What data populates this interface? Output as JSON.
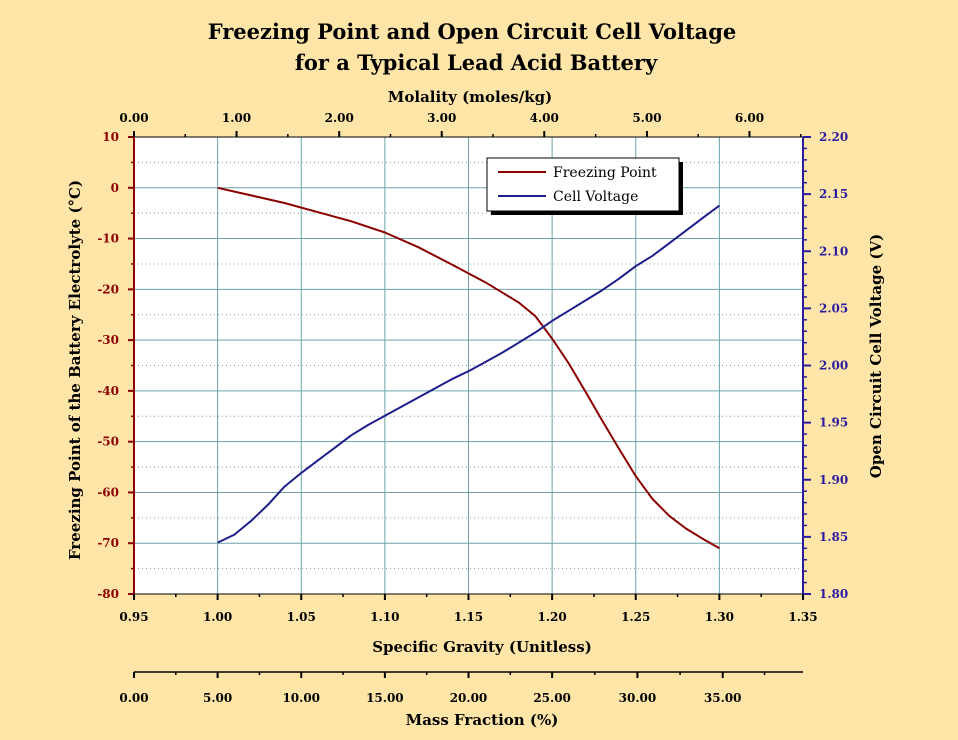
{
  "colors": {
    "background": "#FFE6A8",
    "plot_background": "#FFFFFF",
    "grid": "#6FA3A8",
    "freezing": "#8B0000",
    "voltage": "#1E1E8C",
    "left_axis": "#8B0000",
    "right_axis": "#2A1CA0",
    "text": "#000000"
  },
  "chart_data": {
    "type": "line",
    "title": [
      "Freezing Point and Open Circuit Cell Voltage",
      "for a Typical Lead Acid Battery"
    ],
    "xlabel": "Specific Gravity (Unitless)",
    "xlim": [
      0.95,
      1.35
    ],
    "x_ticks": [
      "0.95",
      "1.00",
      "1.05",
      "1.10",
      "1.15",
      "1.20",
      "1.25",
      "1.30",
      "1.35"
    ],
    "ylabel_left": "Freezing Point of the Battery Electrolyte (°C)",
    "ylim_left": [
      -80,
      10
    ],
    "y_ticks_left": [
      "10",
      "0",
      "-10",
      "-20",
      "-30",
      "-40",
      "-50",
      "-60",
      "-70",
      "-80"
    ],
    "ylabel_right": "Open Circuit Cell Voltage (V)",
    "ylim_right": [
      1.8,
      2.2
    ],
    "y_ticks_right": [
      "2.20",
      "2.15",
      "2.10",
      "2.05",
      "2.00",
      "1.95",
      "1.90",
      "1.85",
      "1.80"
    ],
    "top_axis": {
      "label": "Molality (moles/kg)",
      "ticks": [
        {
          "label": "0.00",
          "sg": 0.95
        },
        {
          "label": "1.00",
          "sg": 1.0113
        },
        {
          "label": "2.00",
          "sg": 1.0727
        },
        {
          "label": "3.00",
          "sg": 1.134
        },
        {
          "label": "4.00",
          "sg": 1.1953
        },
        {
          "label": "5.00",
          "sg": 1.2567
        },
        {
          "label": "6.00",
          "sg": 1.318
        }
      ]
    },
    "bottom_axis": {
      "label": "Mass Fraction (%)",
      "ticks": [
        {
          "label": "0.00",
          "sg": 0.95
        },
        {
          "label": "5.00",
          "sg": 1.0
        },
        {
          "label": "10.00",
          "sg": 1.05
        },
        {
          "label": "15.00",
          "sg": 1.1
        },
        {
          "label": "20.00",
          "sg": 1.15
        },
        {
          "label": "25.00",
          "sg": 1.2
        },
        {
          "label": "30.00",
          "sg": 1.251
        },
        {
          "label": "35.00",
          "sg": 1.302
        }
      ]
    },
    "legend": [
      "Freezing Point",
      "Cell Voltage"
    ],
    "series": [
      {
        "name": "Freezing Point",
        "axis": "left",
        "x": [
          1.0,
          1.02,
          1.04,
          1.06,
          1.08,
          1.1,
          1.12,
          1.14,
          1.16,
          1.18,
          1.19,
          1.2,
          1.21,
          1.22,
          1.23,
          1.24,
          1.25,
          1.26,
          1.27,
          1.28,
          1.29,
          1.3
        ],
        "values": [
          0,
          -1.5,
          -3,
          -4.8,
          -6.6,
          -8.8,
          -11.7,
          -15.1,
          -18.6,
          -22.6,
          -25.3,
          -29.7,
          -34.6,
          -40.2,
          -45.9,
          -51.4,
          -56.8,
          -61.3,
          -64.6,
          -67.1,
          -69.1,
          -71.0
        ]
      },
      {
        "name": "Cell Voltage",
        "axis": "right",
        "x": [
          1.0,
          1.01,
          1.02,
          1.03,
          1.04,
          1.05,
          1.06,
          1.07,
          1.08,
          1.09,
          1.1,
          1.11,
          1.12,
          1.13,
          1.14,
          1.15,
          1.16,
          1.17,
          1.18,
          1.19,
          1.2,
          1.21,
          1.22,
          1.23,
          1.24,
          1.25,
          1.26,
          1.27,
          1.28,
          1.29,
          1.3
        ],
        "values": [
          1.845,
          1.852,
          1.864,
          1.878,
          1.894,
          1.906,
          1.917,
          1.928,
          1.939,
          1.948,
          1.956,
          1.964,
          1.972,
          1.98,
          1.988,
          1.995,
          2.003,
          2.011,
          2.02,
          2.029,
          2.039,
          2.048,
          2.057,
          2.066,
          2.076,
          2.087,
          2.096,
          2.107,
          2.118,
          2.129,
          2.14
        ]
      }
    ]
  }
}
